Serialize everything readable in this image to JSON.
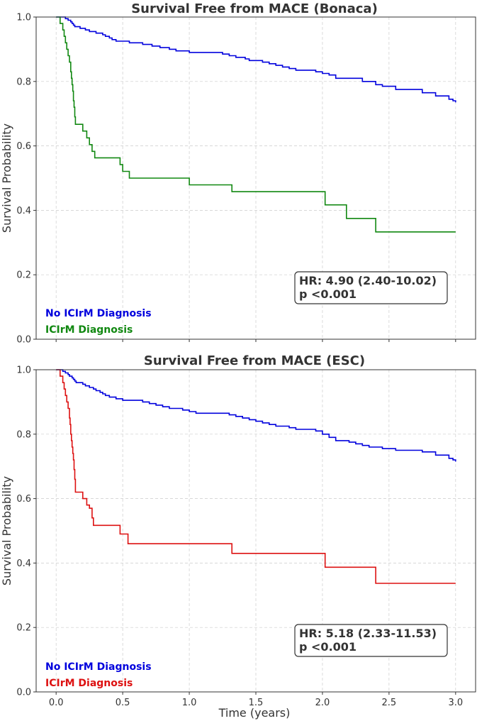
{
  "chart_data": [
    {
      "type": "line",
      "title": "Survival Free from MACE (Bonaca)",
      "xlabel": "",
      "ylabel": "Survival Probability",
      "xlim": [
        -0.15,
        3.15
      ],
      "ylim": [
        0.0,
        1.0
      ],
      "xticks": [
        "0.0",
        "0.5",
        "1.0",
        "1.5",
        "2.0",
        "2.5",
        "3.0"
      ],
      "yticks": [
        "0.0",
        "0.2",
        "0.4",
        "0.6",
        "0.8",
        "1.0"
      ],
      "grid": true,
      "legend_position": "bottom-left",
      "annotation": {
        "hr": "HR: 4.90 (2.40-10.02)",
        "p": "p <0.001"
      },
      "series": [
        {
          "name": "No ICIrM Diagnosis",
          "color": "#0000dd",
          "steps": [
            [
              0,
              1.0
            ],
            [
              0.07,
              0.995
            ],
            [
              0.09,
              0.99
            ],
            [
              0.11,
              0.985
            ],
            [
              0.12,
              0.98
            ],
            [
              0.13,
              0.975
            ],
            [
              0.14,
              0.97
            ],
            [
              0.18,
              0.965
            ],
            [
              0.22,
              0.96
            ],
            [
              0.25,
              0.955
            ],
            [
              0.3,
              0.95
            ],
            [
              0.35,
              0.945
            ],
            [
              0.37,
              0.94
            ],
            [
              0.4,
              0.935
            ],
            [
              0.42,
              0.93
            ],
            [
              0.45,
              0.925
            ],
            [
              0.55,
              0.92
            ],
            [
              0.65,
              0.915
            ],
            [
              0.72,
              0.91
            ],
            [
              0.78,
              0.905
            ],
            [
              0.85,
              0.9
            ],
            [
              0.9,
              0.895
            ],
            [
              1.0,
              0.89
            ],
            [
              1.25,
              0.885
            ],
            [
              1.3,
              0.88
            ],
            [
              1.35,
              0.875
            ],
            [
              1.42,
              0.87
            ],
            [
              1.45,
              0.865
            ],
            [
              1.55,
              0.86
            ],
            [
              1.6,
              0.855
            ],
            [
              1.65,
              0.85
            ],
            [
              1.7,
              0.845
            ],
            [
              1.75,
              0.84
            ],
            [
              1.8,
              0.835
            ],
            [
              1.95,
              0.83
            ],
            [
              2.0,
              0.825
            ],
            [
              2.05,
              0.82
            ],
            [
              2.1,
              0.81
            ],
            [
              2.3,
              0.8
            ],
            [
              2.4,
              0.79
            ],
            [
              2.45,
              0.785
            ],
            [
              2.55,
              0.775
            ],
            [
              2.75,
              0.765
            ],
            [
              2.85,
              0.755
            ],
            [
              2.95,
              0.745
            ],
            [
              2.98,
              0.74
            ],
            [
              3.0,
              0.735
            ]
          ]
        },
        {
          "name": "ICIrM Diagnosis",
          "color": "#118811",
          "steps": [
            [
              0,
              1.0
            ],
            [
              0.03,
              0.98
            ],
            [
              0.05,
              0.96
            ],
            [
              0.06,
              0.94
            ],
            [
              0.07,
              0.92
            ],
            [
              0.08,
              0.9
            ],
            [
              0.09,
              0.88
            ],
            [
              0.1,
              0.86
            ],
            [
              0.11,
              0.83
            ],
            [
              0.115,
              0.81
            ],
            [
              0.12,
              0.79
            ],
            [
              0.125,
              0.77
            ],
            [
              0.13,
              0.74
            ],
            [
              0.135,
              0.72
            ],
            [
              0.14,
              0.69
            ],
            [
              0.145,
              0.667
            ],
            [
              0.2,
              0.646
            ],
            [
              0.23,
              0.625
            ],
            [
              0.25,
              0.604
            ],
            [
              0.27,
              0.583
            ],
            [
              0.29,
              0.563
            ],
            [
              0.48,
              0.542
            ],
            [
              0.5,
              0.521
            ],
            [
              0.55,
              0.5
            ],
            [
              1.0,
              0.479
            ],
            [
              1.2,
              0.479
            ],
            [
              1.32,
              0.458
            ],
            [
              2.02,
              0.417
            ],
            [
              2.18,
              0.375
            ],
            [
              2.4,
              0.333
            ],
            [
              3.0,
              0.333
            ]
          ]
        }
      ]
    },
    {
      "type": "line",
      "title": "Survival Free from MACE (ESC)",
      "xlabel": "Time (years)",
      "ylabel": "Survival Probability",
      "xlim": [
        -0.15,
        3.15
      ],
      "ylim": [
        0.0,
        1.0
      ],
      "xticks": [
        "0.0",
        "0.5",
        "1.0",
        "1.5",
        "2.0",
        "2.5",
        "3.0"
      ],
      "yticks": [
        "0.0",
        "0.2",
        "0.4",
        "0.6",
        "0.8",
        "1.0"
      ],
      "grid": true,
      "legend_position": "bottom-left",
      "annotation": {
        "hr": "HR: 5.18 (2.33-11.53)",
        "p": "p <0.001"
      },
      "series": [
        {
          "name": "No ICIrM Diagnosis",
          "color": "#0000dd",
          "steps": [
            [
              0,
              1.0
            ],
            [
              0.05,
              0.995
            ],
            [
              0.07,
              0.99
            ],
            [
              0.09,
              0.985
            ],
            [
              0.1,
              0.98
            ],
            [
              0.12,
              0.975
            ],
            [
              0.13,
              0.97
            ],
            [
              0.14,
              0.965
            ],
            [
              0.15,
              0.96
            ],
            [
              0.2,
              0.955
            ],
            [
              0.22,
              0.95
            ],
            [
              0.25,
              0.945
            ],
            [
              0.28,
              0.94
            ],
            [
              0.3,
              0.935
            ],
            [
              0.33,
              0.93
            ],
            [
              0.35,
              0.925
            ],
            [
              0.37,
              0.92
            ],
            [
              0.4,
              0.915
            ],
            [
              0.45,
              0.91
            ],
            [
              0.5,
              0.905
            ],
            [
              0.65,
              0.9
            ],
            [
              0.7,
              0.895
            ],
            [
              0.75,
              0.89
            ],
            [
              0.8,
              0.885
            ],
            [
              0.85,
              0.88
            ],
            [
              0.95,
              0.875
            ],
            [
              1.0,
              0.87
            ],
            [
              1.05,
              0.865
            ],
            [
              1.3,
              0.86
            ],
            [
              1.35,
              0.855
            ],
            [
              1.4,
              0.85
            ],
            [
              1.45,
              0.845
            ],
            [
              1.5,
              0.84
            ],
            [
              1.55,
              0.835
            ],
            [
              1.6,
              0.83
            ],
            [
              1.65,
              0.825
            ],
            [
              1.75,
              0.82
            ],
            [
              1.8,
              0.815
            ],
            [
              1.95,
              0.81
            ],
            [
              2.0,
              0.8
            ],
            [
              2.05,
              0.79
            ],
            [
              2.1,
              0.78
            ],
            [
              2.2,
              0.775
            ],
            [
              2.25,
              0.77
            ],
            [
              2.3,
              0.765
            ],
            [
              2.35,
              0.76
            ],
            [
              2.45,
              0.755
            ],
            [
              2.55,
              0.75
            ],
            [
              2.75,
              0.745
            ],
            [
              2.85,
              0.735
            ],
            [
              2.95,
              0.725
            ],
            [
              2.98,
              0.72
            ],
            [
              3.0,
              0.715
            ]
          ]
        },
        {
          "name": "ICIrM Diagnosis",
          "color": "#dd1111",
          "steps": [
            [
              0,
              1.0
            ],
            [
              0.03,
              0.98
            ],
            [
              0.05,
              0.96
            ],
            [
              0.06,
              0.94
            ],
            [
              0.07,
              0.92
            ],
            [
              0.08,
              0.9
            ],
            [
              0.09,
              0.88
            ],
            [
              0.1,
              0.85
            ],
            [
              0.105,
              0.83
            ],
            [
              0.11,
              0.8
            ],
            [
              0.115,
              0.78
            ],
            [
              0.12,
              0.76
            ],
            [
              0.125,
              0.74
            ],
            [
              0.13,
              0.72
            ],
            [
              0.135,
              0.69
            ],
            [
              0.14,
              0.66
            ],
            [
              0.145,
              0.62
            ],
            [
              0.2,
              0.6
            ],
            [
              0.23,
              0.58
            ],
            [
              0.25,
              0.57
            ],
            [
              0.27,
              0.54
            ],
            [
              0.28,
              0.517
            ],
            [
              0.48,
              0.49
            ],
            [
              0.54,
              0.46
            ],
            [
              1.0,
              0.46
            ],
            [
              1.32,
              0.43
            ],
            [
              2.02,
              0.387
            ],
            [
              2.4,
              0.337
            ],
            [
              3.0,
              0.337
            ]
          ]
        }
      ]
    }
  ]
}
